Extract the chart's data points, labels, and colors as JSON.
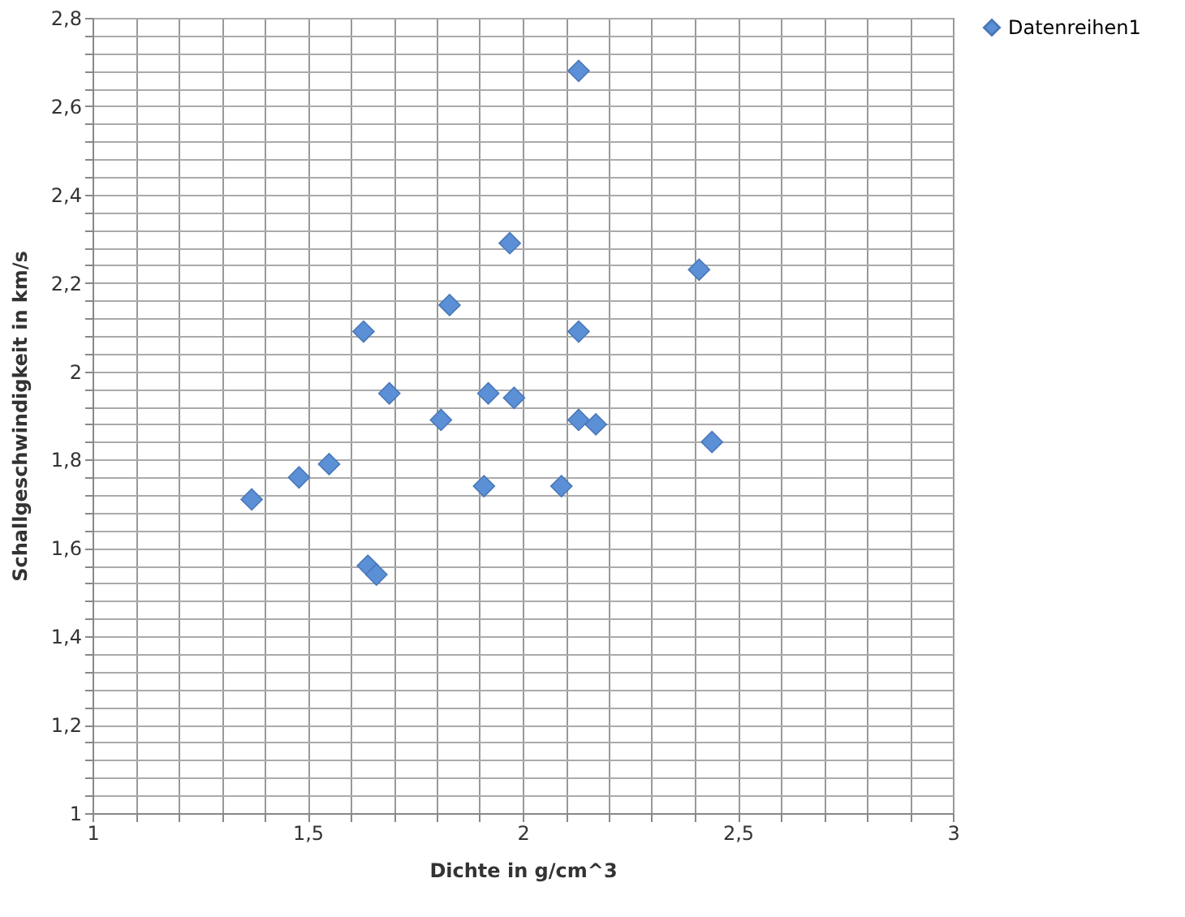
{
  "chart_data": {
    "type": "scatter",
    "xlabel": "Dichte in g/cm^3",
    "ylabel": "Schallgeschwindigkeit  in km/s",
    "x": [
      1.37,
      1.48,
      1.55,
      1.63,
      1.64,
      1.66,
      1.69,
      1.81,
      1.83,
      1.91,
      1.92,
      1.97,
      1.98,
      2.09,
      2.13,
      2.13,
      2.13,
      2.17,
      2.41,
      2.44
    ],
    "series": [
      {
        "name": "Datenreihen1",
        "color": "#5b8fd6",
        "values": [
          1.71,
          1.76,
          1.79,
          2.09,
          1.56,
          1.54,
          1.95,
          1.89,
          2.15,
          1.74,
          1.95,
          2.29,
          1.94,
          1.74,
          2.68,
          2.09,
          1.89,
          1.88,
          2.23,
          1.84
        ]
      }
    ],
    "xlim": [
      1,
      3
    ],
    "xticks": [
      1,
      {
        "value": 1.1,
        "label": null
      },
      {
        "value": 1.2,
        "label": null
      },
      {
        "value": 1.3,
        "label": null
      },
      {
        "value": 1.4,
        "label": null
      },
      {
        "value": 1.5,
        "label": "1,5"
      },
      {
        "value": 1.6,
        "label": null
      },
      {
        "value": 1.7,
        "label": null
      },
      {
        "value": 1.8,
        "label": null
      },
      {
        "value": 1.9,
        "label": null
      },
      2,
      {
        "value": 2.1,
        "label": null
      },
      {
        "value": 2.2,
        "label": null
      },
      {
        "value": 2.3,
        "label": null
      },
      {
        "value": 2.4,
        "label": null
      },
      {
        "value": 2.5,
        "label": "2,5"
      },
      {
        "value": 2.6,
        "label": null
      },
      {
        "value": 2.7,
        "label": null
      },
      {
        "value": 2.8,
        "label": null
      },
      {
        "value": 2.9,
        "label": null
      },
      3
    ],
    "ylim": [
      1,
      2.8
    ],
    "yticks": [
      1,
      {
        "value": 1.04,
        "label": null
      },
      {
        "value": 1.08,
        "label": null
      },
      {
        "value": 1.12,
        "label": null
      },
      {
        "value": 1.16,
        "label": null
      },
      {
        "value": 1.2,
        "label": "1,2"
      },
      {
        "value": 1.24,
        "label": null
      },
      {
        "value": 1.28,
        "label": null
      },
      {
        "value": 1.32,
        "label": null
      },
      {
        "value": 1.36,
        "label": null
      },
      {
        "value": 1.4,
        "label": "1,4"
      },
      {
        "value": 1.44,
        "label": null
      },
      {
        "value": 1.48,
        "label": null
      },
      {
        "value": 1.52,
        "label": null
      },
      {
        "value": 1.56,
        "label": null
      },
      {
        "value": 1.6,
        "label": "1,6"
      },
      {
        "value": 1.64,
        "label": null
      },
      {
        "value": 1.68,
        "label": null
      },
      {
        "value": 1.72,
        "label": null
      },
      {
        "value": 1.76,
        "label": null
      },
      {
        "value": 1.8,
        "label": "1,8"
      },
      {
        "value": 1.84,
        "label": null
      },
      {
        "value": 1.88,
        "label": null
      },
      {
        "value": 1.92,
        "label": null
      },
      {
        "value": 1.96,
        "label": null
      },
      2,
      {
        "value": 2.04,
        "label": null
      },
      {
        "value": 2.08,
        "label": null
      },
      {
        "value": 2.12,
        "label": null
      },
      {
        "value": 2.16,
        "label": null
      },
      {
        "value": 2.2,
        "label": "2,2"
      },
      {
        "value": 2.24,
        "label": null
      },
      {
        "value": 2.28,
        "label": null
      },
      {
        "value": 2.32,
        "label": null
      },
      {
        "value": 2.36,
        "label": null
      },
      {
        "value": 2.4,
        "label": "2,4"
      },
      {
        "value": 2.44,
        "label": null
      },
      {
        "value": 2.48,
        "label": null
      },
      {
        "value": 2.52,
        "label": null
      },
      {
        "value": 2.56,
        "label": null
      },
      {
        "value": 2.6,
        "label": "2,6"
      },
      {
        "value": 2.64,
        "label": null
      },
      {
        "value": 2.68,
        "label": null
      },
      {
        "value": 2.72,
        "label": null
      },
      {
        "value": 2.76,
        "label": null
      },
      {
        "value": 2.8,
        "label": "2,8"
      }
    ],
    "grid": true,
    "legend": "right",
    "marker": "diamond"
  }
}
